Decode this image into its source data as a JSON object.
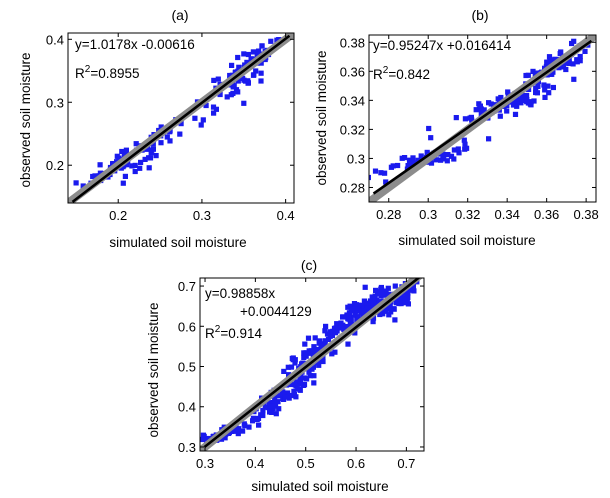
{
  "figure": {
    "shared_xlabel": "simulated soil moisture",
    "shared_ylabel": "observed soil moisture",
    "colors": {
      "points": "#1a1aee",
      "fit_line": "#000000",
      "identity_line": "#8c8c8c"
    }
  },
  "chart_data": [
    {
      "type": "scatter",
      "panel": "(a)",
      "title": "(a)",
      "xlabel": "simulated soil moisture",
      "ylabel": "observed soil moisture",
      "xlim": [
        0.14,
        0.41
      ],
      "ylim": [
        0.14,
        0.41
      ],
      "xticks": [
        0.2,
        0.3,
        0.4
      ],
      "yticks": [
        0.2,
        0.3,
        0.4
      ],
      "xtick_labels": [
        "0.2",
        "0.3",
        "0.4"
      ],
      "ytick_labels": [
        "0.2",
        "0.3",
        "0.4"
      ],
      "fit": {
        "slope": 1.0178,
        "intercept": -0.00616
      },
      "equation": "y=1.0178x -0.00616",
      "r2_label": "R",
      "r2_sup": "2",
      "r2_value": "=0.8955",
      "point_clusters": [
        {
          "cx": 0.205,
          "cy": 0.205,
          "sx": 0.022,
          "sy": 0.02,
          "n": 80
        },
        {
          "cx": 0.255,
          "cy": 0.25,
          "sx": 0.018,
          "sy": 0.014,
          "n": 20
        },
        {
          "cx": 0.34,
          "cy": 0.335,
          "sx": 0.022,
          "sy": 0.025,
          "n": 65
        },
        {
          "cx": 0.375,
          "cy": 0.385,
          "sx": 0.008,
          "sy": 0.01,
          "n": 15
        }
      ]
    },
    {
      "type": "scatter",
      "panel": "(b)",
      "title": "(b)",
      "xlabel": "simulated soil moisture",
      "ylabel": "observed soil moisture",
      "xlim": [
        0.27,
        0.385
      ],
      "ylim": [
        0.27,
        0.385
      ],
      "xticks": [
        0.28,
        0.3,
        0.32,
        0.34,
        0.36,
        0.38
      ],
      "yticks": [
        0.28,
        0.3,
        0.32,
        0.34,
        0.36,
        0.38
      ],
      "xtick_labels": [
        "0.28",
        "0.3",
        "0.32",
        "0.34",
        "0.36",
        "0.38"
      ],
      "ytick_labels": [
        "0.28",
        "0.3",
        "0.32",
        "0.34",
        "0.36",
        "0.38"
      ],
      "fit": {
        "slope": 0.95247,
        "intercept": 0.016414
      },
      "equation": "y=0.95247x +0.016414",
      "r2_label": "R",
      "r2_sup": "2",
      "r2_value": "=0.842",
      "point_clusters": [
        {
          "cx": 0.3,
          "cy": 0.3,
          "sx": 0.012,
          "sy": 0.005,
          "n": 55
        },
        {
          "cx": 0.34,
          "cy": 0.338,
          "sx": 0.012,
          "sy": 0.006,
          "n": 90
        },
        {
          "cx": 0.365,
          "cy": 0.365,
          "sx": 0.007,
          "sy": 0.006,
          "n": 80
        }
      ]
    },
    {
      "type": "scatter",
      "panel": "(c)",
      "title": "(c)",
      "xlabel": "simulated soil moisture",
      "ylabel": "observed soil moisture",
      "xlim": [
        0.29,
        0.735
      ],
      "ylim": [
        0.29,
        0.72
      ],
      "xticks": [
        0.3,
        0.4,
        0.5,
        0.6,
        0.7
      ],
      "yticks": [
        0.3,
        0.4,
        0.5,
        0.6,
        0.7
      ],
      "xtick_labels": [
        "0.3",
        "0.4",
        "0.5",
        "0.6",
        "0.7"
      ],
      "ytick_labels": [
        "0.3",
        "0.4",
        "0.5",
        "0.6",
        "0.7"
      ],
      "fit": {
        "slope": 0.98858,
        "intercept": 0.0044129
      },
      "equation": "y=0.98858x",
      "equation_line2": "+0.0044129",
      "r2_label": "R",
      "r2_sup": "2",
      "r2_value": "=0.914",
      "point_clusters": [
        {
          "cx": 0.34,
          "cy": 0.335,
          "sx": 0.03,
          "sy": 0.012,
          "n": 60
        },
        {
          "cx": 0.45,
          "cy": 0.42,
          "sx": 0.03,
          "sy": 0.03,
          "n": 70
        },
        {
          "cx": 0.51,
          "cy": 0.52,
          "sx": 0.025,
          "sy": 0.035,
          "n": 80
        },
        {
          "cx": 0.62,
          "cy": 0.64,
          "sx": 0.035,
          "sy": 0.03,
          "n": 160
        },
        {
          "cx": 0.69,
          "cy": 0.67,
          "sx": 0.015,
          "sy": 0.025,
          "n": 40
        }
      ]
    }
  ]
}
